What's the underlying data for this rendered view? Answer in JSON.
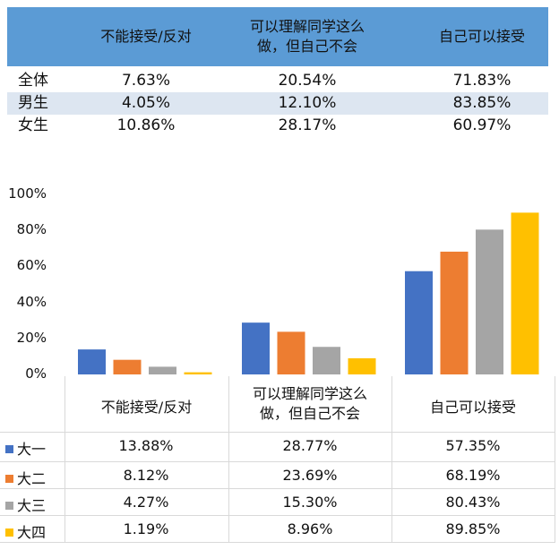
{
  "summary_table": {
    "headers": [
      "不能接受/反对",
      [
        "可以理解同学这么",
        "做，但自己不会"
      ],
      "自己可以接受"
    ],
    "rows": [
      {
        "label": "全体",
        "values": [
          "7.63%",
          "20.54%",
          "71.83%"
        ]
      },
      {
        "label": "男生",
        "values": [
          "4.05%",
          "12.10%",
          "83.85%"
        ]
      },
      {
        "label": "女生",
        "values": [
          "10.86%",
          "28.17%",
          "60.97%"
        ]
      }
    ],
    "header_color": "#5b9bd5",
    "band_color": "#dde6f1"
  },
  "chart_data": {
    "type": "bar",
    "categories": [
      "不能接受/反对",
      [
        "可以理解同学这么",
        "做，但自己不会"
      ],
      "自己可以接受"
    ],
    "ylim": [
      0,
      100
    ],
    "yticks": [
      "0%",
      "20%",
      "40%",
      "60%",
      "80%",
      "100%"
    ],
    "grid": false,
    "legend": "data-table",
    "series": [
      {
        "name": "大一",
        "color": "#4472c4",
        "values": [
          13.88,
          28.77,
          57.35
        ],
        "labels": [
          "13.88%",
          "28.77%",
          "57.35%"
        ]
      },
      {
        "name": "大二",
        "color": "#ed7d31",
        "values": [
          8.12,
          23.69,
          68.19
        ],
        "labels": [
          "8.12%",
          "23.69%",
          "68.19%"
        ]
      },
      {
        "name": "大三",
        "color": "#a5a5a5",
        "values": [
          4.27,
          15.3,
          80.43
        ],
        "labels": [
          "4.27%",
          "15.30%",
          "80.43%"
        ]
      },
      {
        "name": "大四",
        "color": "#ffc000",
        "values": [
          1.19,
          8.96,
          89.85
        ],
        "labels": [
          "1.19%",
          "8.96%",
          "89.85%"
        ]
      }
    ]
  }
}
